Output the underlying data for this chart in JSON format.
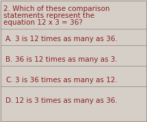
{
  "background_color": "#d6cfc8",
  "border_color": "#a09890",
  "text_color": "#8b2020",
  "question_number": "2.",
  "question_line1": " Which of these comparison",
  "question_line2": "statements represent the",
  "question_line3": "equation 12 x 3 = 36?",
  "options": [
    {
      "label": "A.",
      "text": "  3 is 12 times as many as 36."
    },
    {
      "label": "B.",
      "text": "  36 is 12 times as many as 3."
    },
    {
      "label": "C.",
      "text": "  3 is 36 times as many as 12."
    },
    {
      "label": "D.",
      "text": "  12 is 3 times as many as 36."
    }
  ],
  "question_fontsize": 7.5,
  "option_fontsize": 7.5,
  "fig_width": 2.15,
  "fig_height": 1.78,
  "dpi": 100
}
